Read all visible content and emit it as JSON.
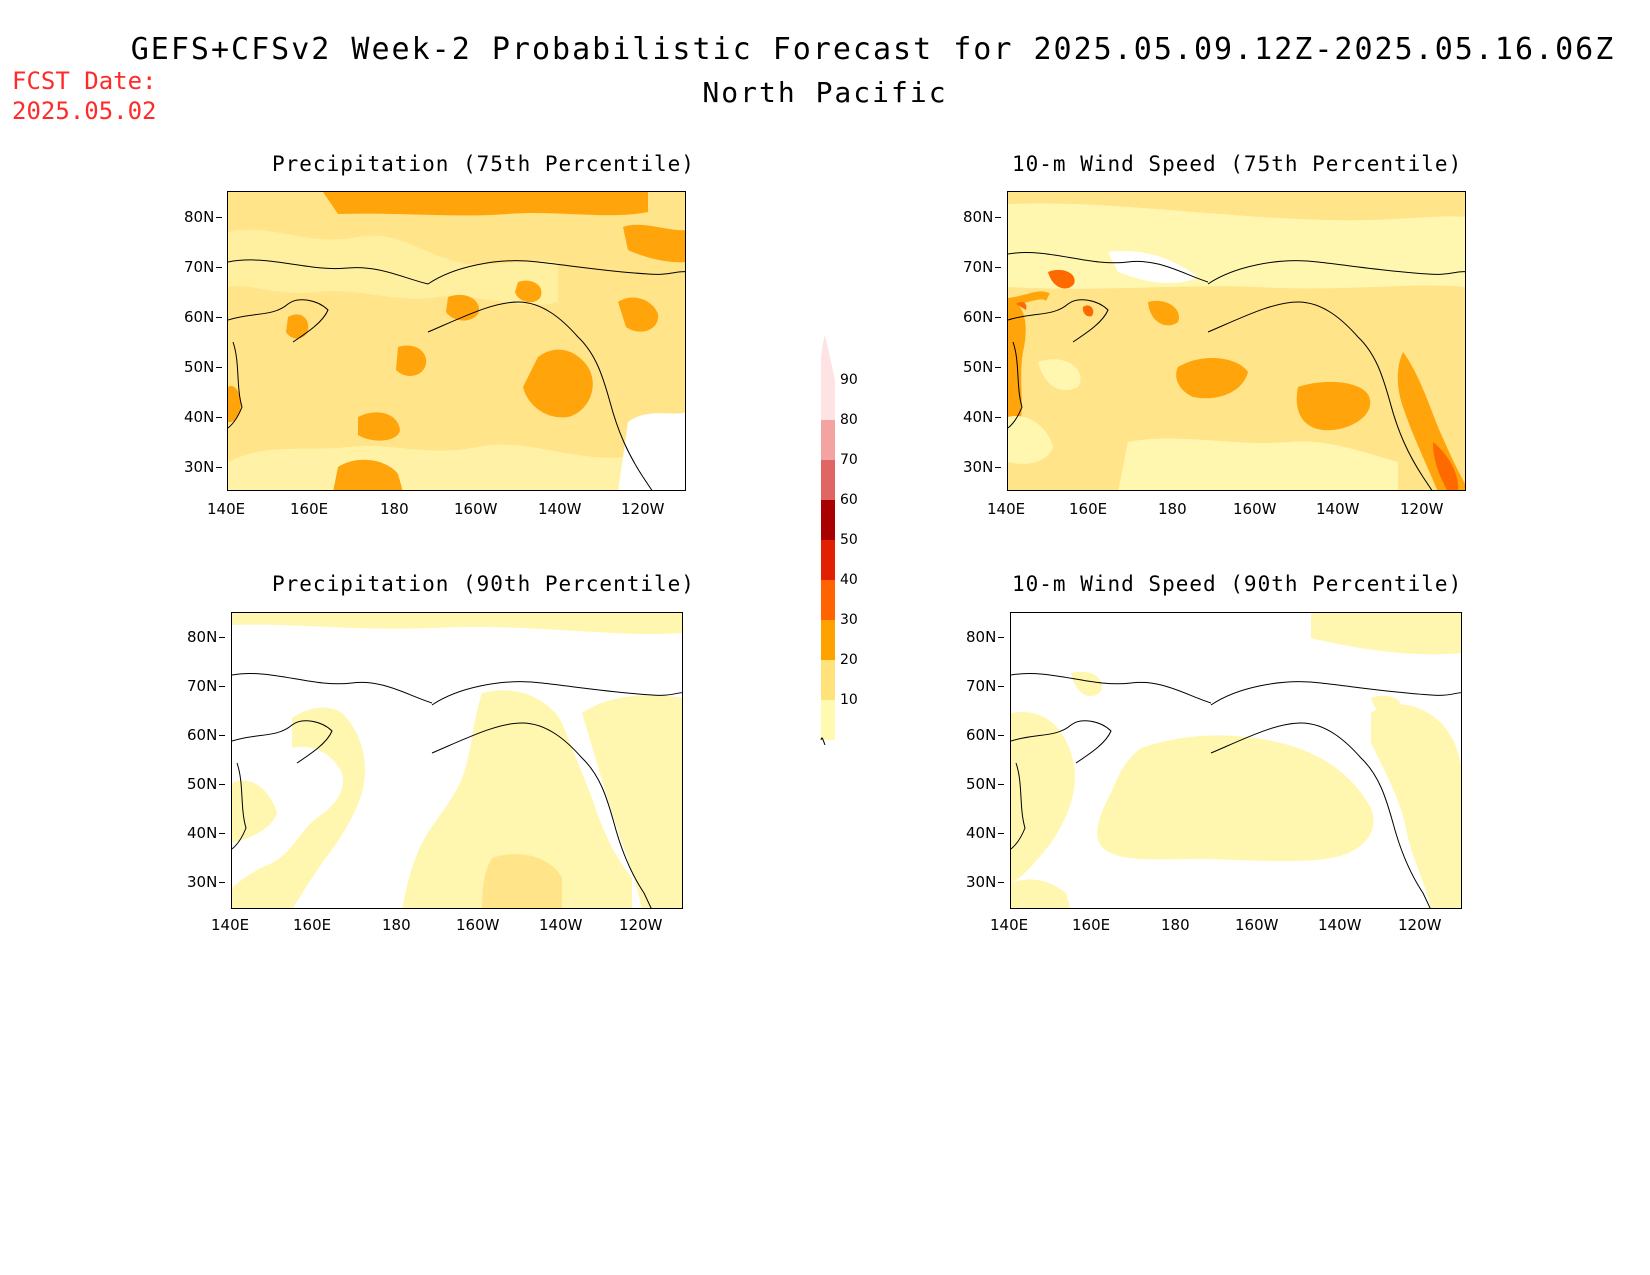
{
  "header": {
    "title": "GEFS+CFSv2 Week-2 Probabilistic Forecast for 2025.05.09.12Z-2025.05.16.06Z",
    "subtitle": "North Pacific",
    "fcst_label": "FCST Date:",
    "fcst_date": "2025.05.02"
  },
  "panels": [
    {
      "title": "Precipitation (75th Percentile)"
    },
    {
      "title": "10-m Wind Speed (75th Percentile)"
    },
    {
      "title": "Precipitation (90th Percentile)"
    },
    {
      "title": "10-m Wind Speed (90th Percentile)"
    }
  ],
  "axes": {
    "lat_labels": [
      "80N",
      "70N",
      "60N",
      "50N",
      "40N",
      "30N"
    ],
    "lon_labels": [
      "140E",
      "160E",
      "180",
      "160W",
      "140W",
      "120W"
    ]
  },
  "colorbar": {
    "labels": [
      "90",
      "80",
      "70",
      "60",
      "50",
      "40",
      "30",
      "20",
      "10"
    ],
    "colors": [
      "#fde3e3",
      "#f4a3a3",
      "#e06666",
      "#a80000",
      "#e02000",
      "#ff6400",
      "#ffa200",
      "#ffe27a",
      "#fffab0"
    ]
  },
  "colors": {
    "shade_10_20": "#fff7b0",
    "shade_20_30": "#ffe48a",
    "shade_30_40": "#ffa40a",
    "shade_40_50": "#ff6a00",
    "fcst_text": "#ff2a2a"
  }
}
